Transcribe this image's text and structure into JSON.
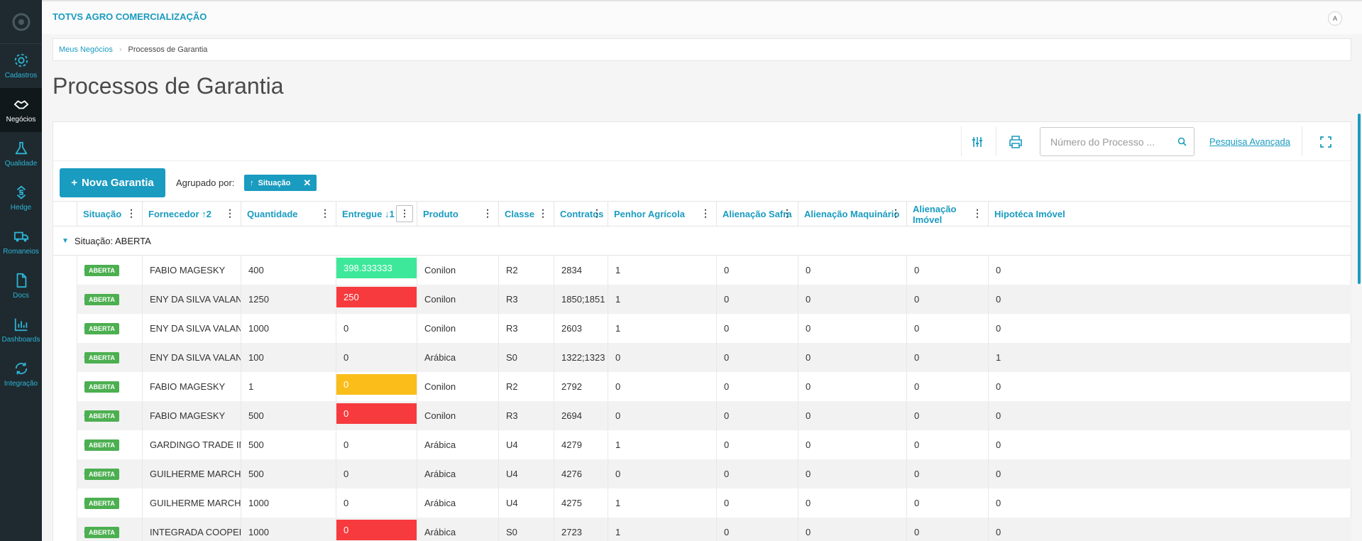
{
  "app": {
    "title": "TOTVS AGRO COMERCIALIZAÇÃO",
    "user_icon": "A"
  },
  "sidebar": {
    "items": [
      {
        "label": "Cadastros",
        "icon": "gear-icon"
      },
      {
        "label": "Negócios",
        "icon": "handshake-icon",
        "active": true
      },
      {
        "label": "Qualidade",
        "icon": "flask-icon"
      },
      {
        "label": "Hedge",
        "icon": "dollar-arrows-icon"
      },
      {
        "label": "Romaneios",
        "icon": "truck-icon"
      },
      {
        "label": "Docs",
        "icon": "document-icon"
      },
      {
        "label": "Dashboards",
        "icon": "bar-chart-icon"
      },
      {
        "label": "Integração",
        "icon": "sync-icon"
      }
    ]
  },
  "breadcrumb": {
    "parent": "Meus Negócios",
    "current": "Processos de Garantia"
  },
  "page": {
    "title": "Processos de Garantia"
  },
  "toolbar": {
    "search_placeholder": "Número do Processo ...",
    "advanced_search": "Pesquisa Avançada"
  },
  "actions": {
    "new_button": "Nova Garantia",
    "group_by_label": "Agrupado por:",
    "group_chip": "Situação"
  },
  "table": {
    "columns": [
      {
        "label": "Situação"
      },
      {
        "label": "Fornecedor ↑2"
      },
      {
        "label": "Quantidade"
      },
      {
        "label": "Entregue ↓1"
      },
      {
        "label": "Produto"
      },
      {
        "label": "Classe"
      },
      {
        "label": "Contratos"
      },
      {
        "label": "Penhor Agrícola"
      },
      {
        "label": "Alienação Safra"
      },
      {
        "label": "Alienação Maquinário"
      },
      {
        "label": "Alienação Imóvel"
      },
      {
        "label": "Hipotéca Imóvel"
      }
    ],
    "group_header": "Situação: ABERTA",
    "colors": {
      "green": "#3ee89a",
      "red": "#f73a3d",
      "yellow": "#fbbd19"
    },
    "rows": [
      {
        "situacao": "ABERTA",
        "fornecedor": "FABIO MAGESKY",
        "quantidade": "400",
        "entregue": "398.333333",
        "entregue_color": "green",
        "produto": "Conilon",
        "classe": "R2",
        "contratos": "2834",
        "penhor": "1",
        "safra": "0",
        "maquinario": "0",
        "imovel": "0",
        "hipoteca": "0"
      },
      {
        "situacao": "ABERTA",
        "fornecedor": "ENY DA SILVA VALANDRO",
        "quantidade": "1250",
        "entregue": "250",
        "entregue_color": "red",
        "produto": "Conilon",
        "classe": "R3",
        "contratos": "1850;1851",
        "penhor": "1",
        "safra": "0",
        "maquinario": "0",
        "imovel": "0",
        "hipoteca": "0"
      },
      {
        "situacao": "ABERTA",
        "fornecedor": "ENY DA SILVA VALANDRO",
        "quantidade": "1000",
        "entregue": "0",
        "entregue_color": "",
        "produto": "Conilon",
        "classe": "R3",
        "contratos": "2603",
        "penhor": "1",
        "safra": "0",
        "maquinario": "0",
        "imovel": "0",
        "hipoteca": "0"
      },
      {
        "situacao": "ABERTA",
        "fornecedor": "ENY DA SILVA VALANDRO",
        "quantidade": "100",
        "entregue": "0",
        "entregue_color": "",
        "produto": "Arábica",
        "classe": "S0",
        "contratos": "1322;1323",
        "penhor": "0",
        "safra": "0",
        "maquinario": "0",
        "imovel": "0",
        "hipoteca": "1"
      },
      {
        "situacao": "ABERTA",
        "fornecedor": "FABIO MAGESKY",
        "quantidade": "1",
        "entregue": "0",
        "entregue_color": "yellow",
        "produto": "Conilon",
        "classe": "R2",
        "contratos": "2792",
        "penhor": "0",
        "safra": "0",
        "maquinario": "0",
        "imovel": "0",
        "hipoteca": "0"
      },
      {
        "situacao": "ABERTA",
        "fornecedor": "FABIO MAGESKY",
        "quantidade": "500",
        "entregue": "0",
        "entregue_color": "red",
        "produto": "Conilon",
        "classe": "R3",
        "contratos": "2694",
        "penhor": "0",
        "safra": "0",
        "maquinario": "0",
        "imovel": "0",
        "hipoteca": "0"
      },
      {
        "situacao": "ABERTA",
        "fornecedor": "GARDINGO TRADE IMPO...",
        "quantidade": "500",
        "entregue": "0",
        "entregue_color": "",
        "produto": "Arábica",
        "classe": "U4",
        "contratos": "4279",
        "penhor": "1",
        "safra": "0",
        "maquinario": "0",
        "imovel": "0",
        "hipoteca": "0"
      },
      {
        "situacao": "ABERTA",
        "fornecedor": "GUILHERME MARCHETTI...",
        "quantidade": "500",
        "entregue": "0",
        "entregue_color": "",
        "produto": "Arábica",
        "classe": "U4",
        "contratos": "4276",
        "penhor": "0",
        "safra": "0",
        "maquinario": "0",
        "imovel": "0",
        "hipoteca": "0"
      },
      {
        "situacao": "ABERTA",
        "fornecedor": "GUILHERME MARCHETTI...",
        "quantidade": "1000",
        "entregue": "0",
        "entregue_color": "",
        "produto": "Arábica",
        "classe": "U4",
        "contratos": "4275",
        "penhor": "1",
        "safra": "0",
        "maquinario": "0",
        "imovel": "0",
        "hipoteca": "0"
      },
      {
        "situacao": "ABERTA",
        "fornecedor": "INTEGRADA COOPERATI...",
        "quantidade": "1000",
        "entregue": "0",
        "entregue_color": "red",
        "produto": "Arábica",
        "classe": "S0",
        "contratos": "2723",
        "penhor": "1",
        "safra": "0",
        "maquinario": "0",
        "imovel": "0",
        "hipoteca": "0"
      }
    ]
  }
}
